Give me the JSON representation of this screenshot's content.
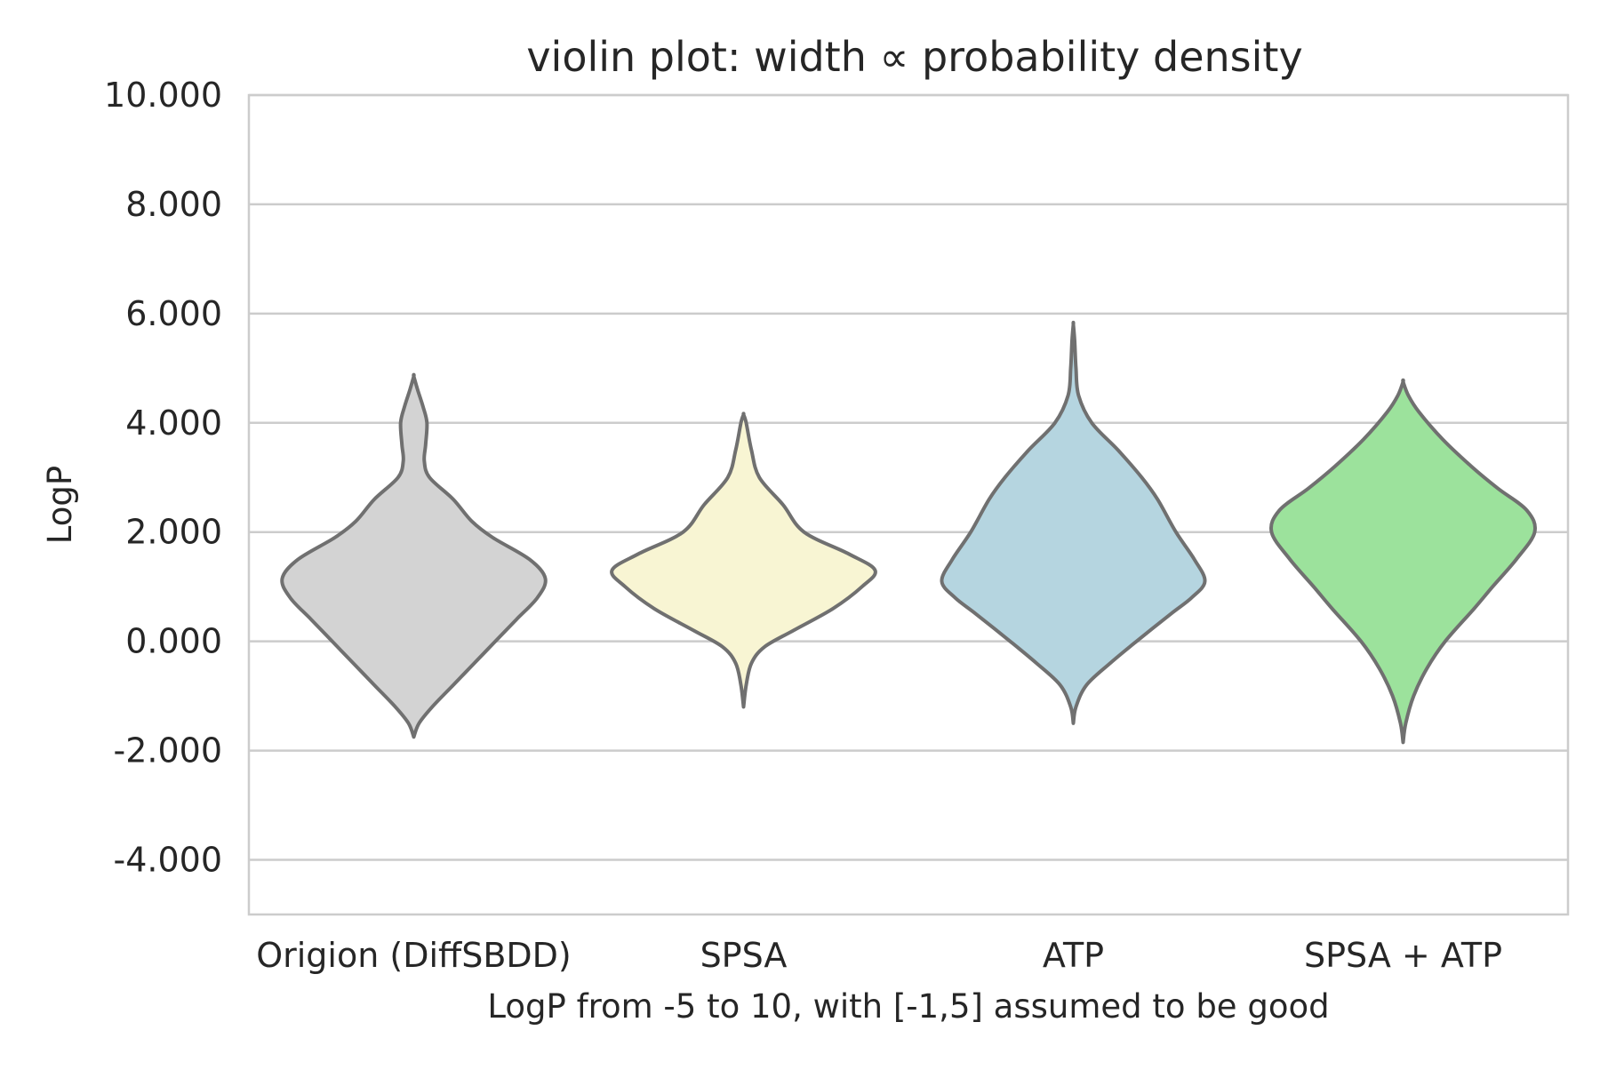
{
  "chart_data": {
    "type": "violin",
    "title": "violin plot: width ∝ probability density",
    "xlabel": "LogP from -5 to 10, with [-1,5] assumed to be good",
    "ylabel": "LogP",
    "ylim": [
      -5,
      10
    ],
    "y_ticks": [
      -4,
      -2,
      0,
      2,
      4,
      6,
      8,
      10
    ],
    "y_tick_labels": [
      "-4.000",
      "-2.000",
      "0.000",
      "2.000",
      "4.000",
      "6.000",
      "8.000",
      "10.000"
    ],
    "grid": true,
    "categories": [
      "Origion (DiffSBDD)",
      "SPSA",
      "ATP",
      "SPSA + ATP"
    ],
    "series": [
      {
        "category": "Origion (DiffSBDD)",
        "color": "#d3d3d3",
        "min": -1.75,
        "max": 4.85,
        "density": [
          [
            -1.75,
            0.0
          ],
          [
            -1.5,
            0.04
          ],
          [
            -1.2,
            0.14
          ],
          [
            -0.8,
            0.3
          ],
          [
            -0.4,
            0.46
          ],
          [
            0.0,
            0.62
          ],
          [
            0.4,
            0.78
          ],
          [
            0.8,
            0.94
          ],
          [
            1.15,
            1.0
          ],
          [
            1.5,
            0.88
          ],
          [
            1.9,
            0.6
          ],
          [
            2.2,
            0.44
          ],
          [
            2.6,
            0.3
          ],
          [
            3.0,
            0.12
          ],
          [
            3.3,
            0.08
          ],
          [
            3.6,
            0.09
          ],
          [
            4.0,
            0.1
          ],
          [
            4.3,
            0.07
          ],
          [
            4.6,
            0.03
          ],
          [
            4.85,
            0.0
          ]
        ]
      },
      {
        "category": "SPSA",
        "color": "#f8f5d3",
        "min": -1.2,
        "max": 4.15,
        "density": [
          [
            -1.2,
            0.0
          ],
          [
            -0.8,
            0.02
          ],
          [
            -0.4,
            0.06
          ],
          [
            -0.1,
            0.16
          ],
          [
            0.2,
            0.38
          ],
          [
            0.6,
            0.68
          ],
          [
            1.0,
            0.9
          ],
          [
            1.3,
            1.0
          ],
          [
            1.6,
            0.8
          ],
          [
            2.0,
            0.46
          ],
          [
            2.5,
            0.3
          ],
          [
            3.0,
            0.12
          ],
          [
            3.5,
            0.06
          ],
          [
            4.0,
            0.02
          ],
          [
            4.15,
            0.0
          ]
        ]
      },
      {
        "category": "ATP",
        "color": "#b5d5e0",
        "min": -1.5,
        "max": 5.8,
        "density": [
          [
            -1.5,
            0.0
          ],
          [
            -1.2,
            0.02
          ],
          [
            -0.8,
            0.1
          ],
          [
            -0.4,
            0.28
          ],
          [
            0.0,
            0.48
          ],
          [
            0.5,
            0.74
          ],
          [
            0.8,
            0.9
          ],
          [
            1.1,
            1.0
          ],
          [
            1.5,
            0.92
          ],
          [
            2.0,
            0.78
          ],
          [
            2.6,
            0.64
          ],
          [
            3.0,
            0.52
          ],
          [
            3.5,
            0.34
          ],
          [
            4.0,
            0.14
          ],
          [
            4.5,
            0.04
          ],
          [
            5.0,
            0.02
          ],
          [
            5.5,
            0.01
          ],
          [
            5.8,
            0.0
          ]
        ]
      },
      {
        "category": "SPSA + ATP",
        "color": "#9ce29c",
        "min": -1.85,
        "max": 4.75,
        "density": [
          [
            -1.85,
            0.0
          ],
          [
            -1.5,
            0.02
          ],
          [
            -1.0,
            0.08
          ],
          [
            -0.5,
            0.18
          ],
          [
            0.0,
            0.32
          ],
          [
            0.6,
            0.54
          ],
          [
            1.0,
            0.68
          ],
          [
            1.5,
            0.86
          ],
          [
            2.0,
            1.0
          ],
          [
            2.4,
            0.94
          ],
          [
            2.8,
            0.72
          ],
          [
            3.2,
            0.52
          ],
          [
            3.7,
            0.3
          ],
          [
            4.2,
            0.12
          ],
          [
            4.5,
            0.04
          ],
          [
            4.75,
            0.0
          ]
        ]
      }
    ]
  }
}
